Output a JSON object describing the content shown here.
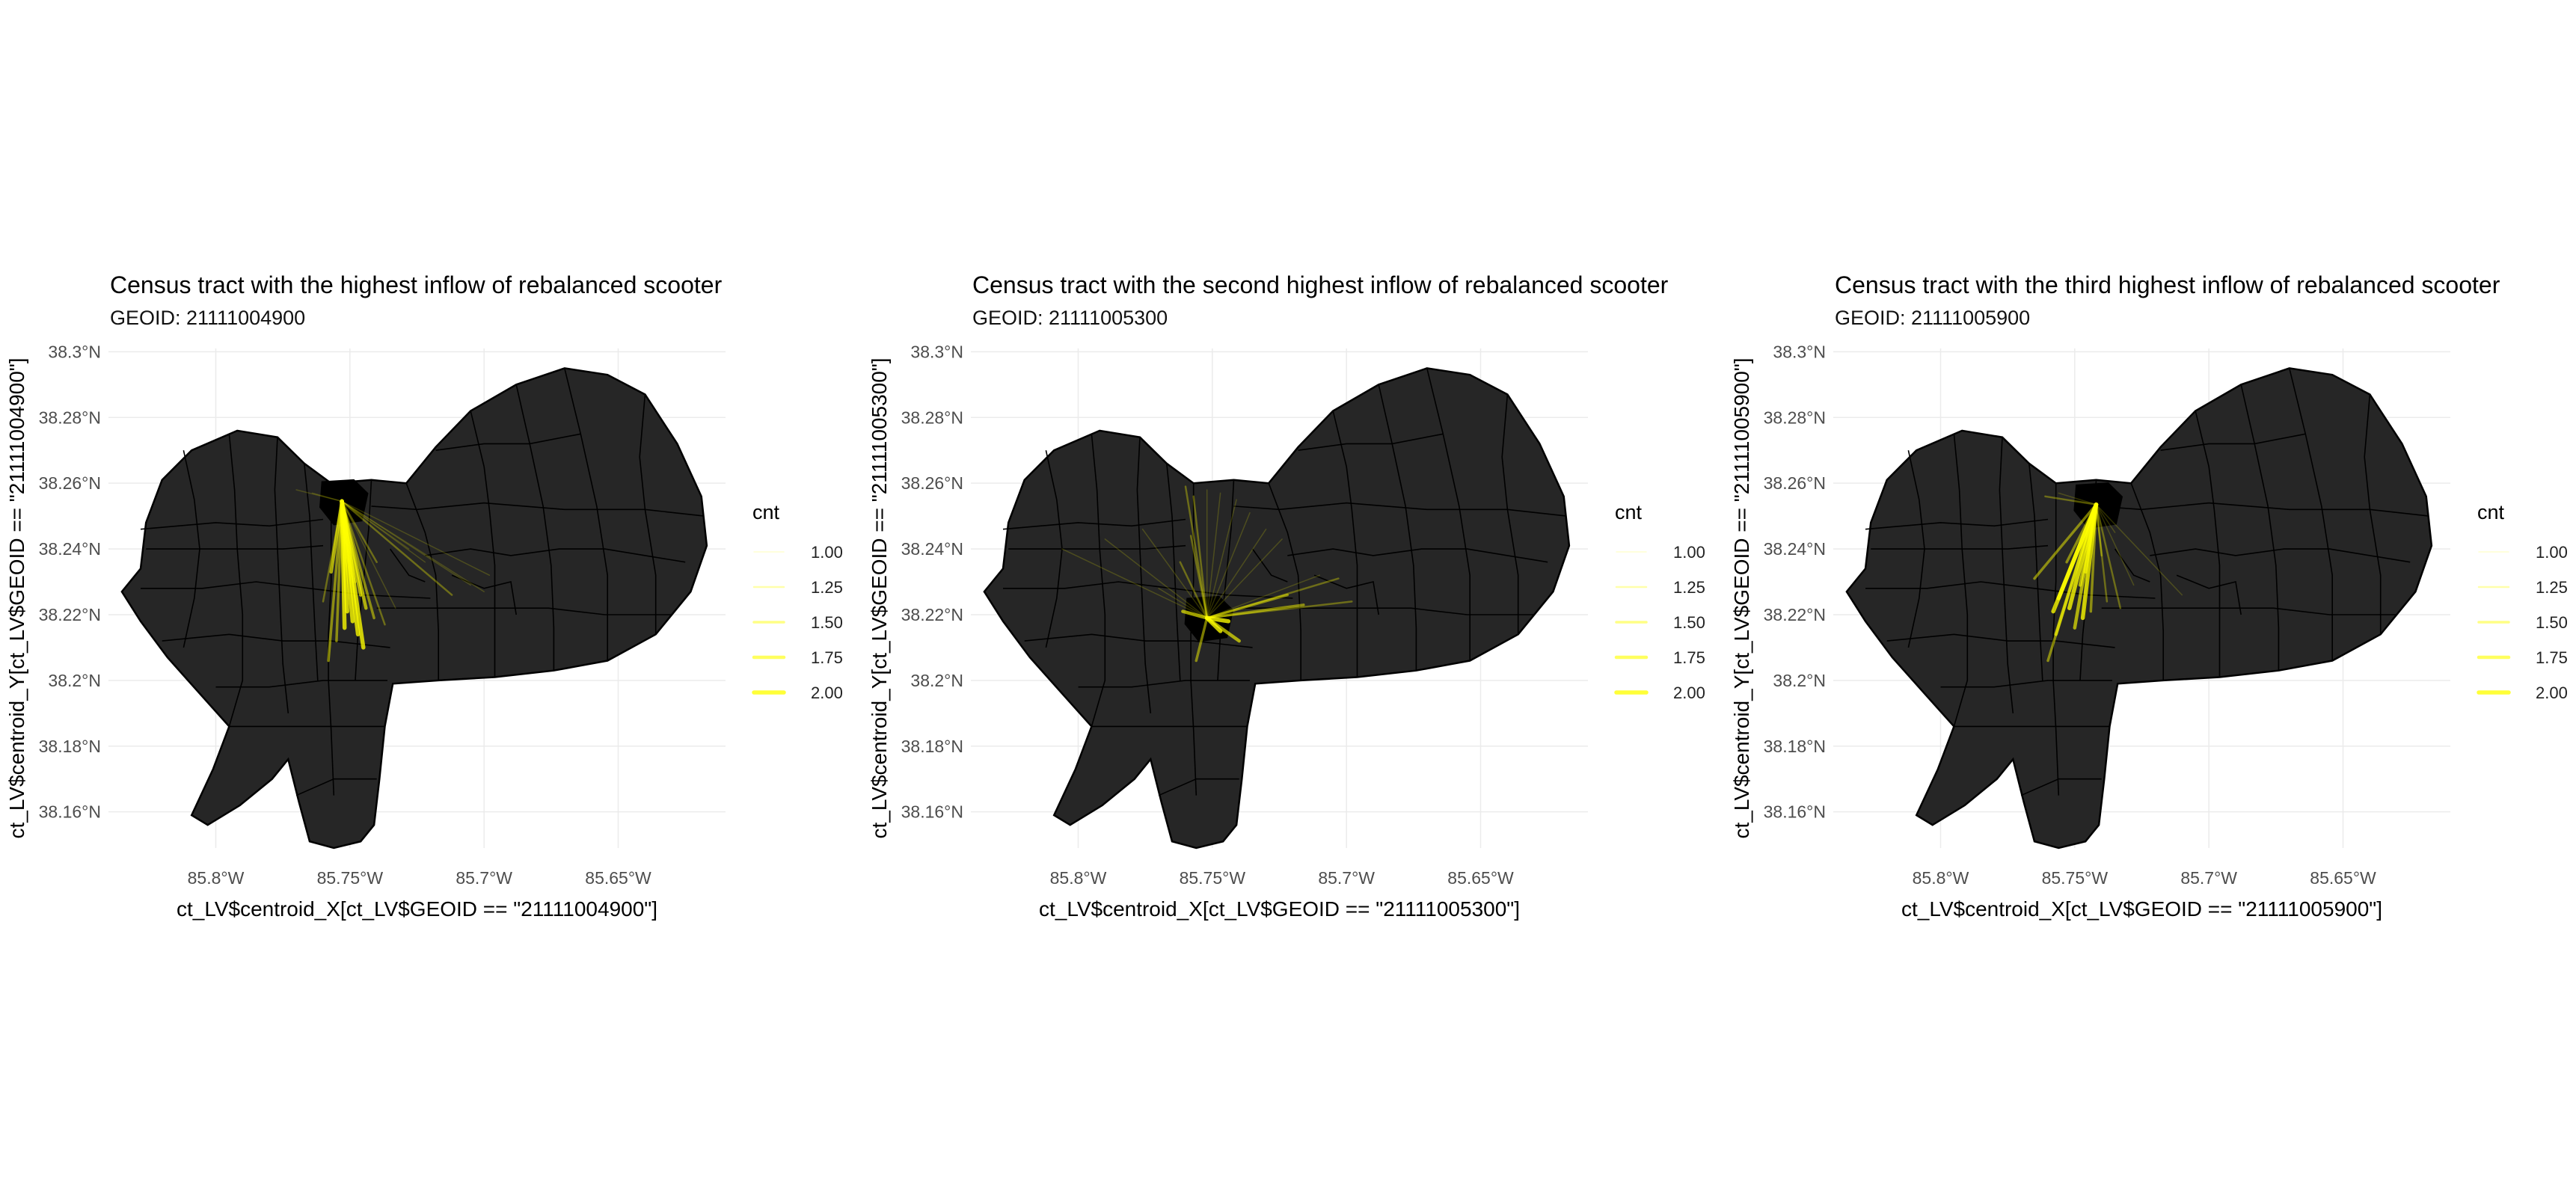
{
  "figure": {
    "panels": [
      {
        "title": "Census tract with the highest inflow of rebalanced scooter",
        "subtitle": "GEOID: 21111004900",
        "xlabel": "ct_LV$centroid_X[ct_LV$GEOID == \"21111004900\"]",
        "ylabel": "ct_LV$centroid_Y[ct_LV$GEOID == \"21111004900\"]",
        "legend": {
          "title": "cnt",
          "labels": [
            "1.00",
            "1.25",
            "1.50",
            "1.75",
            "2.00"
          ],
          "values": [
            1.0,
            1.25,
            1.5,
            1.75,
            2.0
          ]
        },
        "destination": {
          "lon": -85.753,
          "lat": 38.2545
        },
        "origins": [
          [
            -85.745,
            38.21,
            2
          ],
          [
            -85.747,
            38.214,
            2
          ],
          [
            -85.749,
            38.218,
            2
          ],
          [
            -85.751,
            38.221,
            2
          ],
          [
            -85.752,
            38.216,
            2
          ],
          [
            -85.744,
            38.222,
            1.75
          ],
          [
            -85.746,
            38.226,
            1.75
          ],
          [
            -85.758,
            38.206,
            1.5
          ],
          [
            -85.755,
            38.212,
            1.5
          ],
          [
            -85.741,
            38.219,
            1.5
          ],
          [
            -85.737,
            38.217,
            1.25
          ],
          [
            -85.712,
            38.226,
            1.25
          ],
          [
            -85.705,
            38.229,
            1
          ],
          [
            -85.7,
            38.227,
            1
          ],
          [
            -85.698,
            38.232,
            1
          ],
          [
            -85.764,
            38.257,
            1
          ],
          [
            -85.77,
            38.258,
            1
          ],
          [
            -85.76,
            38.224,
            1.25
          ],
          [
            -85.748,
            38.23,
            1.5
          ],
          [
            -85.722,
            38.236,
            1
          ],
          [
            -85.728,
            38.24,
            1
          ],
          [
            -85.74,
            38.236,
            1.25
          ],
          [
            -85.757,
            38.233,
            1.75
          ],
          [
            -85.733,
            38.222,
            1
          ]
        ]
      },
      {
        "title": "Census tract with the second highest inflow of rebalanced scooter",
        "subtitle": "GEOID: 21111005300",
        "xlabel": "ct_LV$centroid_X[ct_LV$GEOID == \"21111005300\"]",
        "ylabel": "ct_LV$centroid_Y[ct_LV$GEOID == \"21111005300\"]",
        "legend": {
          "title": "cnt",
          "labels": [
            "1.00",
            "1.25",
            "1.50",
            "1.75",
            "2.00"
          ],
          "values": [
            1.0,
            1.25,
            1.5,
            1.75,
            2.0
          ]
        },
        "destination": {
          "lon": -85.752,
          "lat": 38.219
        },
        "origins": [
          [
            -85.76,
            38.259,
            1.25
          ],
          [
            -85.757,
            38.256,
            1.25
          ],
          [
            -85.752,
            38.258,
            1
          ],
          [
            -85.747,
            38.257,
            1
          ],
          [
            -85.741,
            38.255,
            1
          ],
          [
            -85.736,
            38.251,
            1
          ],
          [
            -85.73,
            38.246,
            1
          ],
          [
            -85.724,
            38.243,
            1
          ],
          [
            -85.71,
            38.232,
            1
          ],
          [
            -85.703,
            38.231,
            1.25
          ],
          [
            -85.698,
            38.224,
            1.25
          ],
          [
            -85.722,
            38.226,
            1.5
          ],
          [
            -85.716,
            38.223,
            1.5
          ],
          [
            -85.74,
            38.212,
            1.75
          ],
          [
            -85.744,
            38.218,
            2
          ],
          [
            -85.747,
            38.215,
            2
          ],
          [
            -85.756,
            38.206,
            1.5
          ],
          [
            -85.761,
            38.221,
            1.75
          ],
          [
            -85.776,
            38.246,
            1
          ],
          [
            -85.79,
            38.243,
            1
          ],
          [
            -85.806,
            38.24,
            1
          ],
          [
            -85.77,
            38.228,
            1
          ],
          [
            -85.758,
            38.244,
            1.25
          ],
          [
            -85.762,
            38.236,
            1.25
          ]
        ]
      },
      {
        "title": "Census tract with the third highest inflow of rebalanced scooter",
        "subtitle": "GEOID: 21111005900",
        "xlabel": "ct_LV$centroid_X[ct_LV$GEOID == \"21111005900\"]",
        "ylabel": "ct_LV$centroid_Y[ct_LV$GEOID == \"21111005900\"]",
        "legend": {
          "title": "cnt",
          "labels": [
            "1.00",
            "1.25",
            "1.50",
            "1.75",
            "2.00"
          ],
          "values": [
            1.0,
            1.25,
            1.5,
            1.75,
            2.0
          ]
        },
        "destination": {
          "lon": -85.742,
          "lat": 38.2535
        },
        "origins": [
          [
            -85.76,
            38.206,
            1.5
          ],
          [
            -85.757,
            38.214,
            1.75
          ],
          [
            -85.758,
            38.221,
            2
          ],
          [
            -85.756,
            38.225,
            2
          ],
          [
            -85.752,
            38.222,
            2
          ],
          [
            -85.75,
            38.216,
            1.75
          ],
          [
            -85.747,
            38.219,
            2
          ],
          [
            -85.744,
            38.221,
            1.5
          ],
          [
            -85.738,
            38.224,
            1.25
          ],
          [
            -85.733,
            38.222,
            1.25
          ],
          [
            -85.728,
            38.229,
            1
          ],
          [
            -85.71,
            38.226,
            1
          ],
          [
            -85.761,
            38.256,
            1.25
          ],
          [
            -85.756,
            38.257,
            1
          ],
          [
            -85.765,
            38.231,
            1.5
          ],
          [
            -85.746,
            38.233,
            1.75
          ],
          [
            -85.753,
            38.236,
            1.5
          ],
          [
            -85.74,
            38.238,
            1.25
          ],
          [
            -85.748,
            38.229,
            1.75
          ],
          [
            -85.735,
            38.245,
            1
          ]
        ]
      }
    ],
    "x_ticks": [
      -85.8,
      -85.75,
      -85.7,
      -85.65
    ],
    "x_tick_labels": [
      "85.8°W",
      "85.75°W",
      "85.7°W",
      "85.65°W"
    ],
    "y_ticks": [
      38.16,
      38.18,
      38.2,
      38.22,
      38.24,
      38.26,
      38.28,
      38.3
    ],
    "y_tick_labels": [
      "38.16°N",
      "38.18°N",
      "38.2°N",
      "38.22°N",
      "38.24°N",
      "38.26°N",
      "38.28°N",
      "38.3°N"
    ],
    "xlim": [
      -85.84,
      -85.61
    ],
    "ylim": [
      38.149,
      38.301
    ],
    "colors": {
      "map_fill": "#262626",
      "borders": "#000000",
      "flow": "#ffff00",
      "highlight": "#000000",
      "grid": "#ebebeb"
    }
  }
}
